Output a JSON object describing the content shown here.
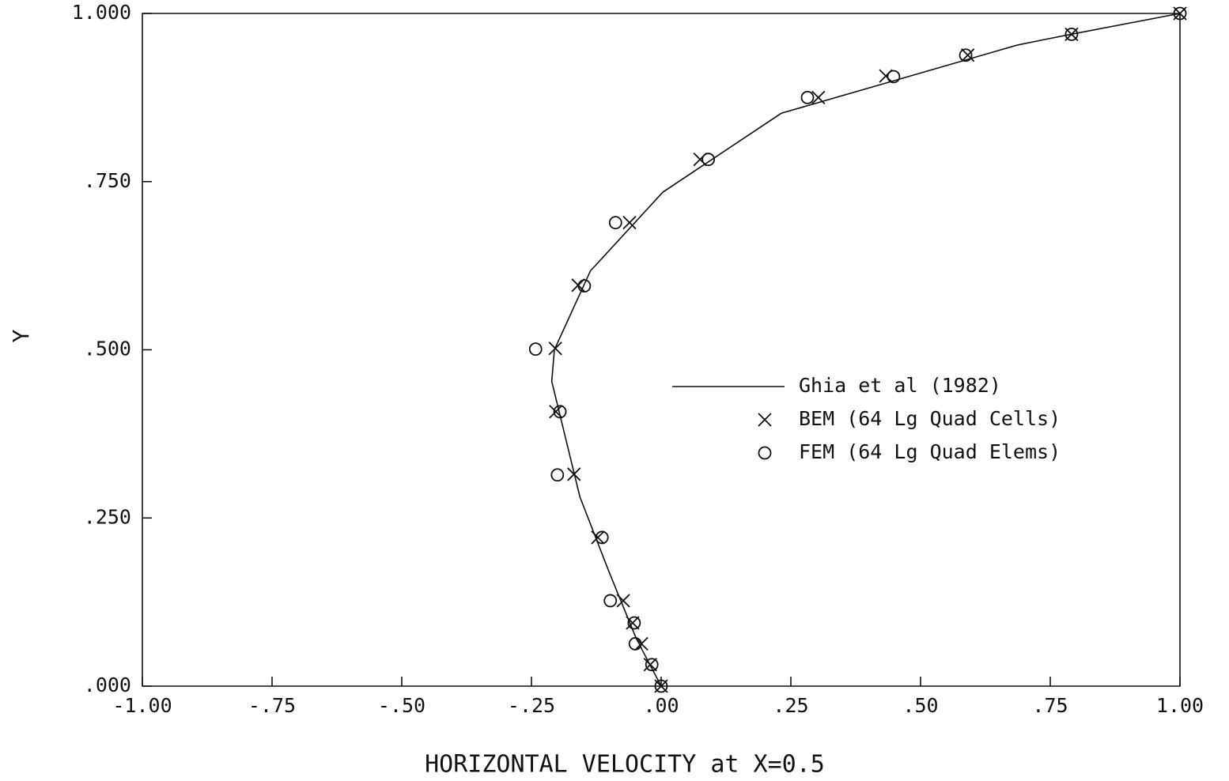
{
  "chart_data": {
    "type": "scatter",
    "xlabel": "HORIZONTAL VELOCITY at X=0.5",
    "ylabel": "Y",
    "xlim": [
      -1,
      1
    ],
    "ylim": [
      0,
      1
    ],
    "xticks": [
      {
        "value": -1,
        "label": "-1.00"
      },
      {
        "value": -0.75,
        "label": "-.75"
      },
      {
        "value": -0.5,
        "label": "-.50"
      },
      {
        "value": -0.25,
        "label": "-.25"
      },
      {
        "value": 0,
        "label": ".00"
      },
      {
        "value": 0.25,
        "label": ".25"
      },
      {
        "value": 0.5,
        "label": ".50"
      },
      {
        "value": 0.75,
        "label": ".75"
      },
      {
        "value": 1,
        "label": "1.00"
      }
    ],
    "yticks": [
      {
        "value": 0,
        "label": ".000"
      },
      {
        "value": 0.25,
        "label": ".250"
      },
      {
        "value": 0.5,
        "label": ".500"
      },
      {
        "value": 0.75,
        "label": ".750"
      },
      {
        "value": 1,
        "label": "1.000"
      }
    ],
    "legend": "center-right",
    "series": [
      {
        "name": "Ghia et al (1982)",
        "marker": "line",
        "color": "#111",
        "x": [
          0,
          -0.03717,
          -0.04192,
          -0.04775,
          -0.06434,
          -0.1015,
          -0.15662,
          -0.2109,
          -0.20581,
          -0.13641,
          0.00332,
          0.23151,
          0.68717,
          0.73722,
          0.78871,
          0.84123,
          1.0
        ],
        "values": [
          0,
          0.0547,
          0.0625,
          0.0703,
          0.1016,
          0.1719,
          0.2813,
          0.4531,
          0.5,
          0.6172,
          0.7344,
          0.8516,
          0.9531,
          0.9609,
          0.9688,
          0.9766,
          1.0
        ]
      },
      {
        "name": "BEM (64 Lg Quad Cells)",
        "marker": "x",
        "color": "#111",
        "x": [
          1.0,
          0.791,
          0.591,
          0.433,
          0.303,
          0.075,
          -0.061,
          -0.16,
          -0.204,
          -0.203,
          -0.168,
          -0.122,
          -0.073,
          -0.055,
          -0.038,
          -0.021,
          0
        ],
        "values": [
          1.0,
          0.969,
          0.938,
          0.907,
          0.875,
          0.783,
          0.689,
          0.596,
          0.502,
          0.408,
          0.315,
          0.221,
          0.127,
          0.094,
          0.063,
          0.032,
          0
        ]
      },
      {
        "name": "FEM (64 Lg Quad Elems)",
        "marker": "o",
        "color": "#111",
        "x": [
          1.0,
          0.791,
          0.587,
          0.448,
          0.282,
          0.091,
          -0.088,
          -0.148,
          -0.242,
          -0.195,
          -0.2,
          -0.114,
          -0.098,
          -0.052,
          -0.05,
          -0.018,
          0
        ],
        "values": [
          1.0,
          0.969,
          0.938,
          0.906,
          0.875,
          0.783,
          0.689,
          0.595,
          0.501,
          0.408,
          0.314,
          0.221,
          0.127,
          0.094,
          0.063,
          0.032,
          0
        ]
      }
    ]
  }
}
